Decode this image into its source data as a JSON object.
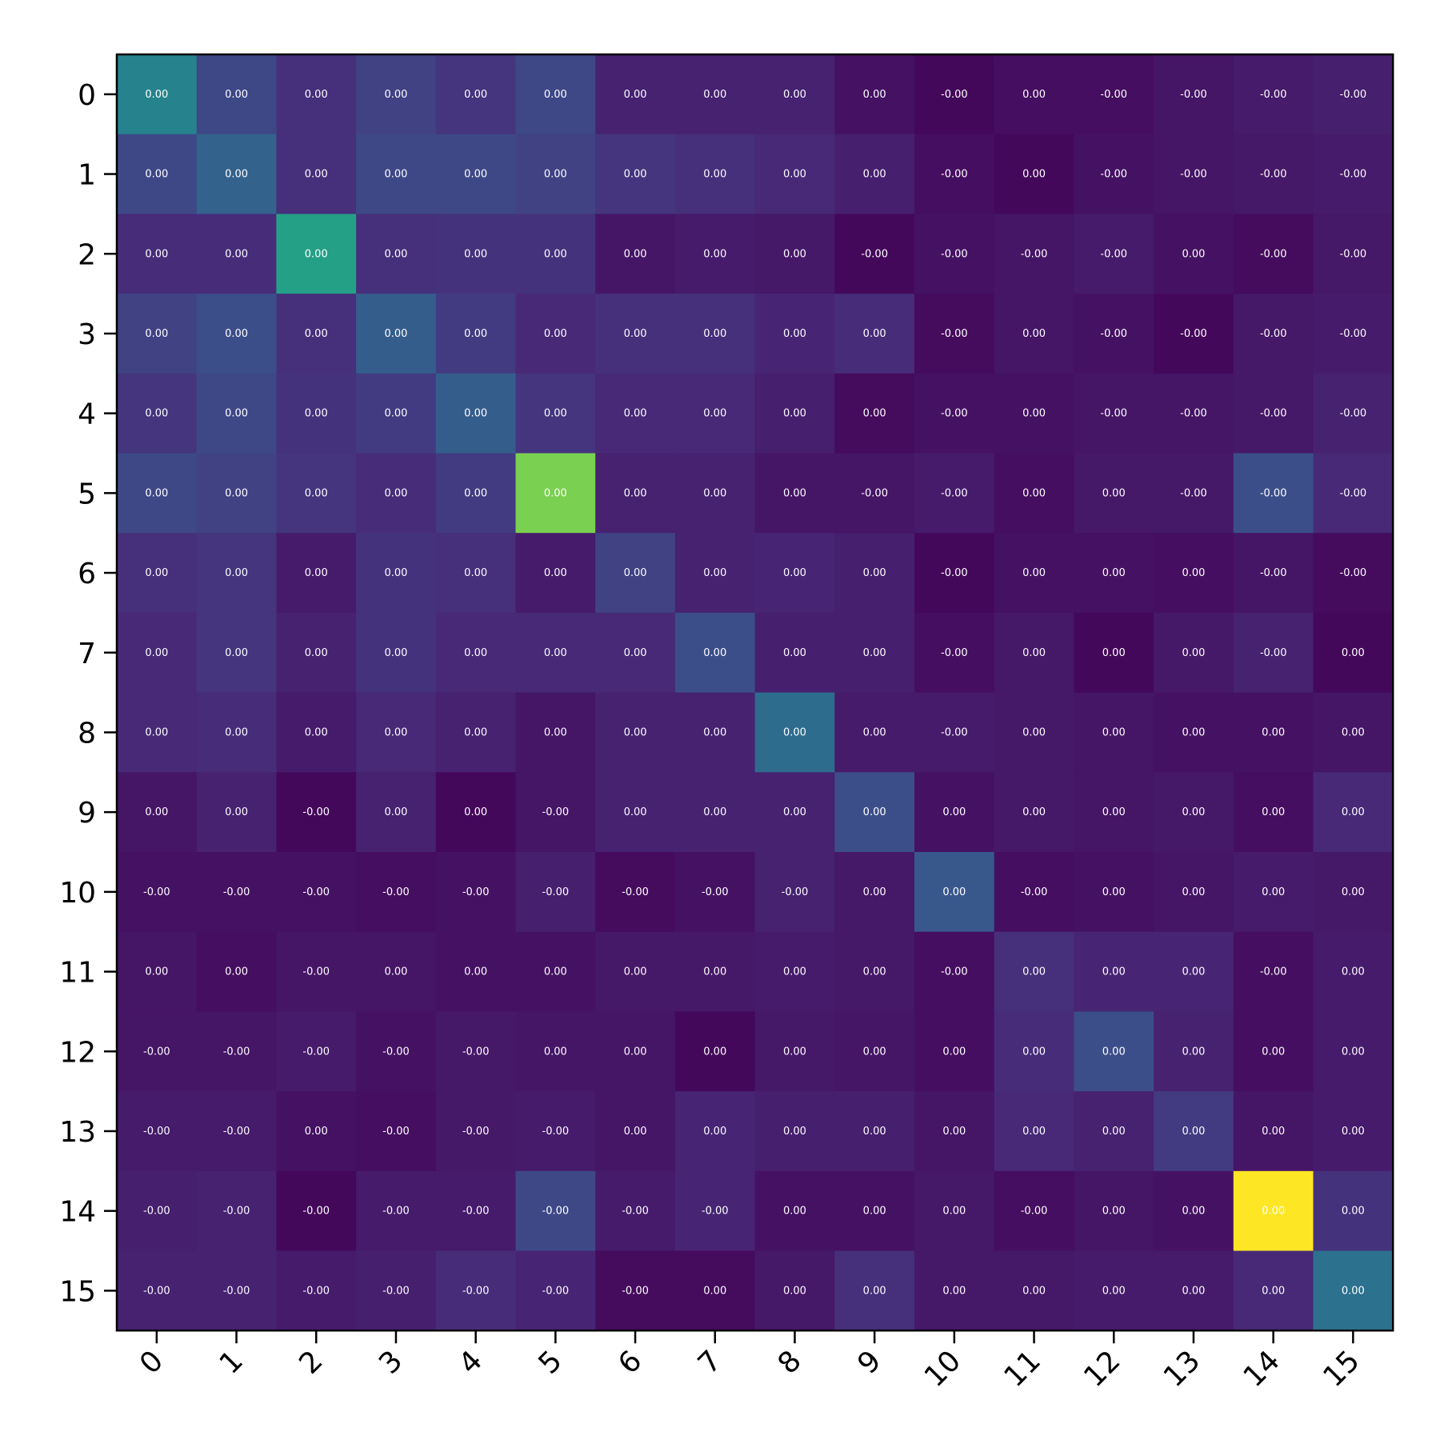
{
  "chart_data": {
    "type": "heatmap",
    "title": "",
    "xlabel": "",
    "ylabel": "",
    "colormap": "viridis",
    "rows": [
      "0",
      "1",
      "2",
      "3",
      "4",
      "5",
      "6",
      "7",
      "8",
      "9",
      "10",
      "11",
      "12",
      "13",
      "14",
      "15"
    ],
    "cols": [
      "0",
      "1",
      "2",
      "3",
      "4",
      "5",
      "6",
      "7",
      "8",
      "9",
      "10",
      "11",
      "12",
      "13",
      "14",
      "15"
    ],
    "x_tick_rotation_deg": 45,
    "color_levels": [
      [
        0.45,
        0.22,
        0.14,
        0.2,
        0.16,
        0.22,
        0.1,
        0.1,
        0.1,
        0.05,
        0.02,
        0.04,
        0.04,
        0.06,
        0.08,
        0.09
      ],
      [
        0.22,
        0.32,
        0.14,
        0.22,
        0.22,
        0.2,
        0.16,
        0.14,
        0.12,
        0.09,
        0.04,
        0.02,
        0.05,
        0.06,
        0.07,
        0.08
      ],
      [
        0.13,
        0.13,
        0.57,
        0.14,
        0.15,
        0.15,
        0.06,
        0.08,
        0.07,
        0.02,
        0.05,
        0.06,
        0.08,
        0.05,
        0.03,
        0.07
      ],
      [
        0.2,
        0.24,
        0.14,
        0.3,
        0.18,
        0.12,
        0.14,
        0.14,
        0.11,
        0.13,
        0.03,
        0.06,
        0.05,
        0.02,
        0.07,
        0.08
      ],
      [
        0.16,
        0.22,
        0.15,
        0.18,
        0.3,
        0.16,
        0.12,
        0.12,
        0.09,
        0.03,
        0.05,
        0.05,
        0.06,
        0.06,
        0.07,
        0.1
      ],
      [
        0.22,
        0.2,
        0.16,
        0.13,
        0.18,
        0.8,
        0.1,
        0.1,
        0.06,
        0.06,
        0.08,
        0.04,
        0.07,
        0.07,
        0.24,
        0.12
      ],
      [
        0.14,
        0.16,
        0.08,
        0.15,
        0.14,
        0.08,
        0.2,
        0.1,
        0.11,
        0.09,
        0.02,
        0.05,
        0.05,
        0.04,
        0.06,
        0.03
      ],
      [
        0.12,
        0.16,
        0.1,
        0.15,
        0.12,
        0.12,
        0.12,
        0.24,
        0.09,
        0.09,
        0.04,
        0.07,
        0.02,
        0.07,
        0.1,
        0.02
      ],
      [
        0.12,
        0.13,
        0.08,
        0.12,
        0.1,
        0.06,
        0.1,
        0.1,
        0.36,
        0.08,
        0.08,
        0.07,
        0.06,
        0.05,
        0.05,
        0.06
      ],
      [
        0.06,
        0.1,
        0.02,
        0.1,
        0.02,
        0.06,
        0.1,
        0.1,
        0.1,
        0.24,
        0.05,
        0.07,
        0.06,
        0.07,
        0.04,
        0.12
      ],
      [
        0.05,
        0.05,
        0.05,
        0.04,
        0.05,
        0.09,
        0.03,
        0.05,
        0.1,
        0.07,
        0.28,
        0.04,
        0.05,
        0.06,
        0.08,
        0.07
      ],
      [
        0.06,
        0.04,
        0.06,
        0.06,
        0.05,
        0.05,
        0.07,
        0.07,
        0.08,
        0.07,
        0.04,
        0.14,
        0.11,
        0.11,
        0.04,
        0.08
      ],
      [
        0.06,
        0.06,
        0.08,
        0.05,
        0.07,
        0.06,
        0.06,
        0.02,
        0.07,
        0.06,
        0.04,
        0.13,
        0.24,
        0.1,
        0.04,
        0.08
      ],
      [
        0.08,
        0.08,
        0.05,
        0.04,
        0.07,
        0.08,
        0.06,
        0.11,
        0.09,
        0.09,
        0.06,
        0.12,
        0.1,
        0.18,
        0.06,
        0.08
      ],
      [
        0.09,
        0.1,
        0.02,
        0.08,
        0.08,
        0.22,
        0.08,
        0.11,
        0.05,
        0.05,
        0.07,
        0.04,
        0.06,
        0.05,
        1.0,
        0.15
      ],
      [
        0.1,
        0.1,
        0.08,
        0.09,
        0.13,
        0.11,
        0.03,
        0.03,
        0.07,
        0.14,
        0.07,
        0.07,
        0.08,
        0.08,
        0.12,
        0.38
      ]
    ],
    "cell_labels": [
      [
        "0.00",
        "0.00",
        "0.00",
        "0.00",
        "0.00",
        "0.00",
        "0.00",
        "0.00",
        "0.00",
        "0.00",
        "-0.00",
        "0.00",
        "-0.00",
        "-0.00",
        "-0.00",
        "-0.00"
      ],
      [
        "0.00",
        "0.00",
        "0.00",
        "0.00",
        "0.00",
        "0.00",
        "0.00",
        "0.00",
        "0.00",
        "0.00",
        "-0.00",
        "0.00",
        "-0.00",
        "-0.00",
        "-0.00",
        "-0.00"
      ],
      [
        "0.00",
        "0.00",
        "0.00",
        "0.00",
        "0.00",
        "0.00",
        "0.00",
        "0.00",
        "0.00",
        "-0.00",
        "-0.00",
        "-0.00",
        "-0.00",
        "0.00",
        "-0.00",
        "-0.00"
      ],
      [
        "0.00",
        "0.00",
        "0.00",
        "0.00",
        "0.00",
        "0.00",
        "0.00",
        "0.00",
        "0.00",
        "0.00",
        "-0.00",
        "0.00",
        "-0.00",
        "-0.00",
        "-0.00",
        "-0.00"
      ],
      [
        "0.00",
        "0.00",
        "0.00",
        "0.00",
        "0.00",
        "0.00",
        "0.00",
        "0.00",
        "0.00",
        "0.00",
        "-0.00",
        "0.00",
        "-0.00",
        "-0.00",
        "-0.00",
        "-0.00"
      ],
      [
        "0.00",
        "0.00",
        "0.00",
        "0.00",
        "0.00",
        "0.00",
        "0.00",
        "0.00",
        "0.00",
        "-0.00",
        "-0.00",
        "0.00",
        "0.00",
        "-0.00",
        "-0.00",
        "-0.00"
      ],
      [
        "0.00",
        "0.00",
        "0.00",
        "0.00",
        "0.00",
        "0.00",
        "0.00",
        "0.00",
        "0.00",
        "0.00",
        "-0.00",
        "0.00",
        "0.00",
        "0.00",
        "-0.00",
        "-0.00"
      ],
      [
        "0.00",
        "0.00",
        "0.00",
        "0.00",
        "0.00",
        "0.00",
        "0.00",
        "0.00",
        "0.00",
        "0.00",
        "-0.00",
        "0.00",
        "0.00",
        "0.00",
        "-0.00",
        "0.00"
      ],
      [
        "0.00",
        "0.00",
        "0.00",
        "0.00",
        "0.00",
        "0.00",
        "0.00",
        "0.00",
        "0.00",
        "0.00",
        "-0.00",
        "0.00",
        "0.00",
        "0.00",
        "0.00",
        "0.00"
      ],
      [
        "0.00",
        "0.00",
        "-0.00",
        "0.00",
        "0.00",
        "-0.00",
        "0.00",
        "0.00",
        "0.00",
        "0.00",
        "0.00",
        "0.00",
        "0.00",
        "0.00",
        "0.00",
        "0.00"
      ],
      [
        "-0.00",
        "-0.00",
        "-0.00",
        "-0.00",
        "-0.00",
        "-0.00",
        "-0.00",
        "-0.00",
        "-0.00",
        "0.00",
        "0.00",
        "-0.00",
        "0.00",
        "0.00",
        "0.00",
        "0.00"
      ],
      [
        "0.00",
        "0.00",
        "-0.00",
        "0.00",
        "0.00",
        "0.00",
        "0.00",
        "0.00",
        "0.00",
        "0.00",
        "-0.00",
        "0.00",
        "0.00",
        "0.00",
        "-0.00",
        "0.00"
      ],
      [
        "-0.00",
        "-0.00",
        "-0.00",
        "-0.00",
        "-0.00",
        "0.00",
        "0.00",
        "0.00",
        "0.00",
        "0.00",
        "0.00",
        "0.00",
        "0.00",
        "0.00",
        "0.00",
        "0.00"
      ],
      [
        "-0.00",
        "-0.00",
        "0.00",
        "-0.00",
        "-0.00",
        "-0.00",
        "0.00",
        "0.00",
        "0.00",
        "0.00",
        "0.00",
        "0.00",
        "0.00",
        "0.00",
        "0.00",
        "0.00"
      ],
      [
        "-0.00",
        "-0.00",
        "-0.00",
        "-0.00",
        "-0.00",
        "-0.00",
        "-0.00",
        "-0.00",
        "0.00",
        "0.00",
        "0.00",
        "-0.00",
        "0.00",
        "0.00",
        "0.00",
        "0.00"
      ],
      [
        "-0.00",
        "-0.00",
        "-0.00",
        "-0.00",
        "-0.00",
        "-0.00",
        "-0.00",
        "0.00",
        "0.00",
        "0.00",
        "0.00",
        "0.00",
        "0.00",
        "0.00",
        "0.00",
        "0.00"
      ]
    ]
  }
}
